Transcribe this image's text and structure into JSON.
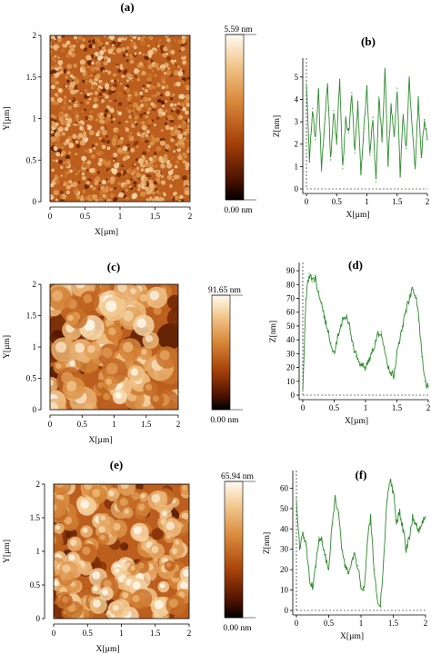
{
  "figure": {
    "rows": [
      {
        "map": {
          "panel_label": "(a)",
          "x_label": "X[µm]",
          "y_label": "Y[µm]",
          "x_ticks": [
            "0",
            "0.5",
            "1",
            "1.5",
            "2"
          ],
          "y_ticks": [
            "0",
            "0.5",
            "1",
            "1.5",
            "2"
          ],
          "colorbar_max": "5.59 nm",
          "colorbar_min": "0.00 nm",
          "texture": "fine",
          "seed": 11
        },
        "profile": {
          "panel_label": "(b)",
          "x_label": "X[µm]",
          "y_label": "Z[nm]",
          "x_ticks": [
            "0",
            "0.5",
            "1",
            "1.5",
            "2"
          ],
          "y_ticks": [
            "0",
            "1",
            "2",
            "3",
            "4",
            "5"
          ],
          "series_color": "#2e8b2e",
          "chart_data": {
            "type": "line",
            "xlim": [
              0,
              2
            ],
            "ylim": [
              0,
              5.6
            ],
            "x": [
              0,
              0.05,
              0.1,
              0.15,
              0.2,
              0.25,
              0.3,
              0.35,
              0.4,
              0.45,
              0.5,
              0.55,
              0.6,
              0.65,
              0.7,
              0.75,
              0.8,
              0.85,
              0.9,
              0.95,
              1.0,
              1.05,
              1.1,
              1.15,
              1.2,
              1.25,
              1.3,
              1.35,
              1.4,
              1.45,
              1.5,
              1.55,
              1.6,
              1.65,
              1.7,
              1.75,
              1.8,
              1.85,
              1.9,
              1.95,
              2.0
            ],
            "y": [
              4.8,
              1.2,
              3.6,
              2.2,
              4.4,
              0.8,
              2.9,
              4.7,
              1.3,
              3.5,
              2.0,
              4.9,
              0.9,
              3.1,
              2.5,
              4.3,
              1.6,
              3.8,
              0.7,
              2.7,
              4.6,
              1.5,
              3.2,
              0.3,
              4.1,
              2.1,
              5.3,
              1.1,
              3.7,
              2.4,
              4.5,
              0.6,
              3.3,
              1.8,
              4.9,
              2.6,
              0.9,
              4.0,
              1.4,
              3.1,
              2.2
            ]
          }
        }
      },
      {
        "map": {
          "panel_label": "(c)",
          "x_label": "X[µm]",
          "y_label": "Y[µm]",
          "x_ticks": [
            "0",
            "0.5",
            "1",
            "1.5",
            "2"
          ],
          "y_ticks": [
            "0",
            "0.5",
            "1",
            "1.5",
            "2"
          ],
          "colorbar_max": "91.65 nm",
          "colorbar_min": "0.00 nm",
          "texture": "coarse",
          "seed": 23
        },
        "profile": {
          "panel_label": "(d)",
          "x_label": "X[µm]",
          "y_label": "Z[nm]",
          "x_ticks": [
            "0",
            "0.5",
            "1",
            "1.5",
            "2"
          ],
          "y_ticks": [
            "0",
            "10",
            "20",
            "30",
            "40",
            "50",
            "60",
            "70",
            "80",
            "90"
          ],
          "series_color": "#2e8b2e",
          "chart_data": {
            "type": "line",
            "xlim": [
              0,
              2
            ],
            "ylim": [
              0,
              92
            ],
            "x": [
              0,
              0.05,
              0.1,
              0.15,
              0.2,
              0.25,
              0.3,
              0.35,
              0.4,
              0.45,
              0.5,
              0.55,
              0.6,
              0.65,
              0.7,
              0.75,
              0.8,
              0.85,
              0.9,
              0.95,
              1.0,
              1.05,
              1.1,
              1.15,
              1.2,
              1.25,
              1.3,
              1.35,
              1.4,
              1.45,
              1.5,
              1.55,
              1.6,
              1.65,
              1.7,
              1.75,
              1.8,
              1.85,
              1.9,
              1.95,
              2.0
            ],
            "y": [
              5,
              70,
              88,
              82,
              85,
              74,
              66,
              55,
              46,
              38,
              30,
              42,
              50,
              56,
              58,
              48,
              36,
              28,
              24,
              22,
              20,
              24,
              30,
              38,
              44,
              46,
              34,
              22,
              16,
              14,
              30,
              40,
              52,
              62,
              70,
              78,
              72,
              54,
              28,
              10,
              6
            ]
          }
        }
      },
      {
        "map": {
          "panel_label": "(e)",
          "x_label": "X[µm]",
          "y_label": "Y[µm]",
          "x_ticks": [
            "0",
            "0.5",
            "1",
            "1.5",
            "2"
          ],
          "y_ticks": [
            "0",
            "0.5",
            "1",
            "1.5",
            "2"
          ],
          "colorbar_max": "65.94 nm",
          "colorbar_min": "0.00 nm",
          "texture": "medium",
          "seed": 37
        },
        "profile": {
          "panel_label": "(f)",
          "x_label": "X[µm]",
          "y_label": "Z[nm]",
          "x_ticks": [
            "0",
            "0.5",
            "1",
            "1.5",
            "2"
          ],
          "y_ticks": [
            "0",
            "10",
            "20",
            "30",
            "40",
            "50",
            "60"
          ],
          "series_color": "#2e8b2e",
          "chart_data": {
            "type": "line",
            "xlim": [
              0,
              2
            ],
            "ylim": [
              0,
              66
            ],
            "x": [
              0,
              0.05,
              0.1,
              0.15,
              0.2,
              0.25,
              0.3,
              0.35,
              0.4,
              0.45,
              0.5,
              0.55,
              0.6,
              0.65,
              0.7,
              0.75,
              0.8,
              0.85,
              0.9,
              0.95,
              1.0,
              1.05,
              1.1,
              1.15,
              1.2,
              1.25,
              1.3,
              1.35,
              1.4,
              1.45,
              1.5,
              1.55,
              1.6,
              1.65,
              1.7,
              1.75,
              1.8,
              1.85,
              1.9,
              1.95,
              2.0
            ],
            "y": [
              55,
              30,
              38,
              32,
              16,
              12,
              22,
              36,
              34,
              26,
              20,
              42,
              56,
              48,
              30,
              22,
              18,
              24,
              28,
              22,
              12,
              10,
              34,
              46,
              20,
              6,
              2,
              24,
              54,
              64,
              58,
              44,
              48,
              40,
              30,
              36,
              46,
              42,
              38,
              44,
              46
            ]
          }
        }
      }
    ]
  }
}
